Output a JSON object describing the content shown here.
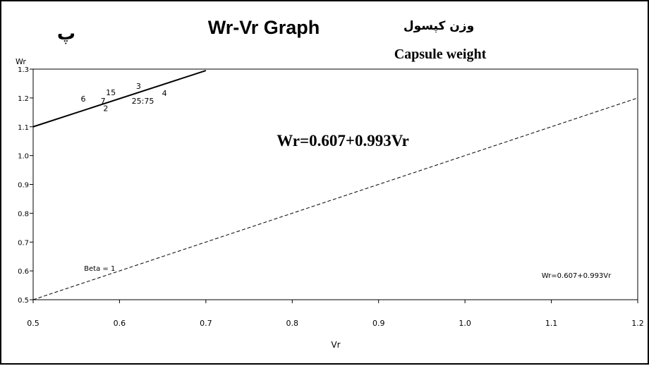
{
  "chart_data": {
    "type": "line",
    "title": "Wr-Vr Graph",
    "persian_letter": "پ",
    "persian_subtitle": "وزن کپسول",
    "subtitle": "Capsule weight",
    "xlabel": "Vr",
    "ylabel": "Wr",
    "xlim": [
      0.5,
      1.2
    ],
    "ylim": [
      0.5,
      1.3
    ],
    "xticks": [
      "0.5",
      "0.6",
      "0.7",
      "0.8",
      "0.9",
      "1.0",
      "1.1",
      "1.2"
    ],
    "yticks": [
      "0.5",
      "0.6",
      "0.7",
      "0.8",
      "0.9",
      "1.0",
      "1.1",
      "1.2",
      "1.3"
    ],
    "xtick_values": [
      0.5,
      0.6,
      0.7,
      0.8,
      0.9,
      1.0,
      1.1,
      1.2
    ],
    "ytick_values": [
      0.5,
      0.6,
      0.7,
      0.8,
      0.9,
      1.0,
      1.1,
      1.2,
      1.3
    ],
    "grid": false,
    "equation": "Wr=0.607+0.993Vr",
    "equation_small": "Wr=0.607+0.993Vr",
    "series": [
      {
        "name": "Wr=0.607+0.993Vr",
        "style": "solid",
        "x": [
          0.5,
          0.7
        ],
        "y": [
          1.1,
          1.295
        ]
      },
      {
        "name": "Beta = 1",
        "style": "dashed",
        "x": [
          0.5,
          1.2
        ],
        "y": [
          0.5,
          1.2
        ]
      }
    ],
    "point_labels": [
      {
        "text": "6",
        "x": 0.558,
        "y": 1.187
      },
      {
        "text": "15",
        "x": 0.59,
        "y": 1.21
      },
      {
        "text": "3",
        "x": 0.622,
        "y": 1.232
      },
      {
        "text": "4",
        "x": 0.652,
        "y": 1.207
      },
      {
        "text": "7",
        "x": 0.581,
        "y": 1.18
      },
      {
        "text": "2",
        "x": 0.584,
        "y": 1.155
      },
      {
        "text": "25:75",
        "x": 0.627,
        "y": 1.18
      }
    ],
    "beta_label": {
      "text": "Beta = 1",
      "x": 0.577,
      "y": 0.6
    }
  }
}
